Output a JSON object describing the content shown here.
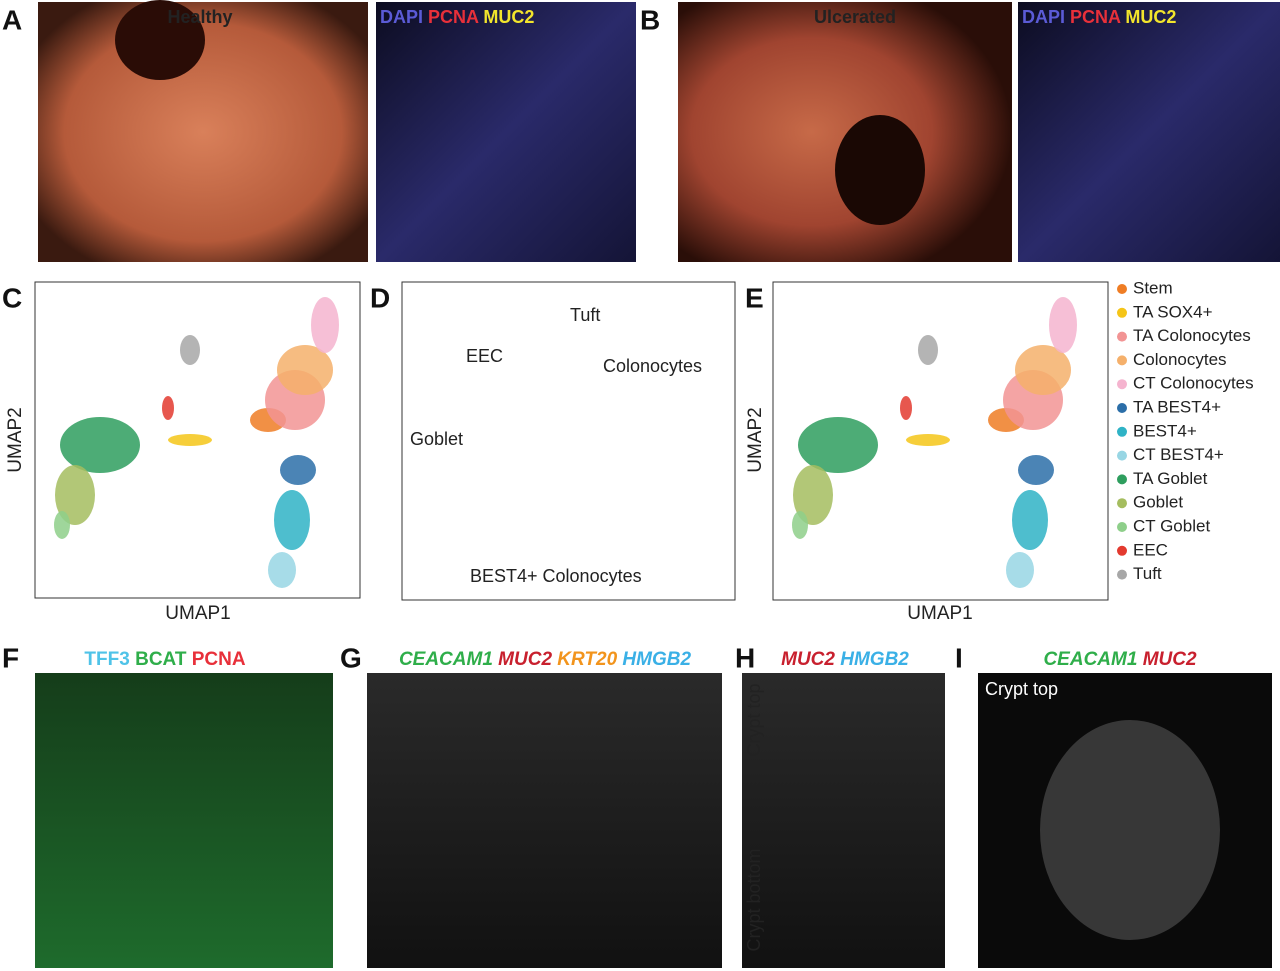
{
  "panel_letters": [
    "A",
    "B",
    "C",
    "D",
    "E",
    "F",
    "G",
    "H",
    "I"
  ],
  "panel_a": {
    "image_label": "Healthy",
    "stains": [
      {
        "text": "DAPI",
        "color": "#5b5bd6"
      },
      {
        "text": "PCNA",
        "color": "#e8303a"
      },
      {
        "text": "MUC2",
        "color": "#f2e52c"
      }
    ]
  },
  "panel_b": {
    "image_label": "Ulcerated",
    "stains": [
      {
        "text": "DAPI",
        "color": "#5b5bd6"
      },
      {
        "text": "PCNA",
        "color": "#e8303a"
      },
      {
        "text": "MUC2",
        "color": "#f2e52c"
      }
    ]
  },
  "panel_c": {
    "x_label": "UMAP1",
    "y_label": "UMAP2"
  },
  "panel_d": {
    "labels": [
      "Tuft",
      "EEC",
      "Colonocytes",
      "Goblet",
      "BEST4+ Colonocytes"
    ]
  },
  "panel_e": {
    "x_label": "UMAP1",
    "y_label": "UMAP2"
  },
  "legend": [
    {
      "name": "Stem",
      "color": "#ef7d24"
    },
    {
      "name": "TA SOX4+",
      "color": "#f5c518"
    },
    {
      "name": "TA Colonocytes",
      "color": "#f29494"
    },
    {
      "name": "Colonocytes",
      "color": "#f5b06b"
    },
    {
      "name": "CT Colonocytes",
      "color": "#f5b4cf"
    },
    {
      "name": "TA BEST4+",
      "color": "#2b6ea8"
    },
    {
      "name": "BEST4+",
      "color": "#2fb3c6"
    },
    {
      "name": "CT BEST4+",
      "color": "#98d6e4"
    },
    {
      "name": "TA Goblet",
      "color": "#2e9e5e"
    },
    {
      "name": "Goblet",
      "color": "#a5bd5f"
    },
    {
      "name": "CT Goblet",
      "color": "#8ecf8a"
    },
    {
      "name": "EEC",
      "color": "#e33a2f"
    },
    {
      "name": "Tuft",
      "color": "#a7a7a7"
    }
  ],
  "panel_f": {
    "stains": [
      {
        "text": "TFF3",
        "color": "#4fc3e8"
      },
      {
        "text": "BCAT",
        "color": "#2fae4a"
      },
      {
        "text": "PCNA",
        "color": "#e8303a"
      }
    ]
  },
  "panel_g": {
    "stains": [
      {
        "text": "CEACAM1",
        "color": "#2fae4a"
      },
      {
        "text": "MUC2",
        "color": "#c8202e"
      },
      {
        "text": "KRT20",
        "color": "#f2941c"
      },
      {
        "text": "HMGB2",
        "color": "#3ab0e6"
      }
    ]
  },
  "panel_h": {
    "stains": [
      {
        "text": "MUC2",
        "color": "#c8202e"
      },
      {
        "text": "HMGB2",
        "color": "#3ab0e6"
      }
    ],
    "top_label": "Crypt top",
    "bottom_label": "Crypt bottom"
  },
  "panel_i": {
    "stains": [
      {
        "text": "CEACAM1",
        "color": "#2fae4a"
      },
      {
        "text": "MUC2",
        "color": "#c8202e"
      }
    ],
    "top_label": "Crypt top"
  }
}
